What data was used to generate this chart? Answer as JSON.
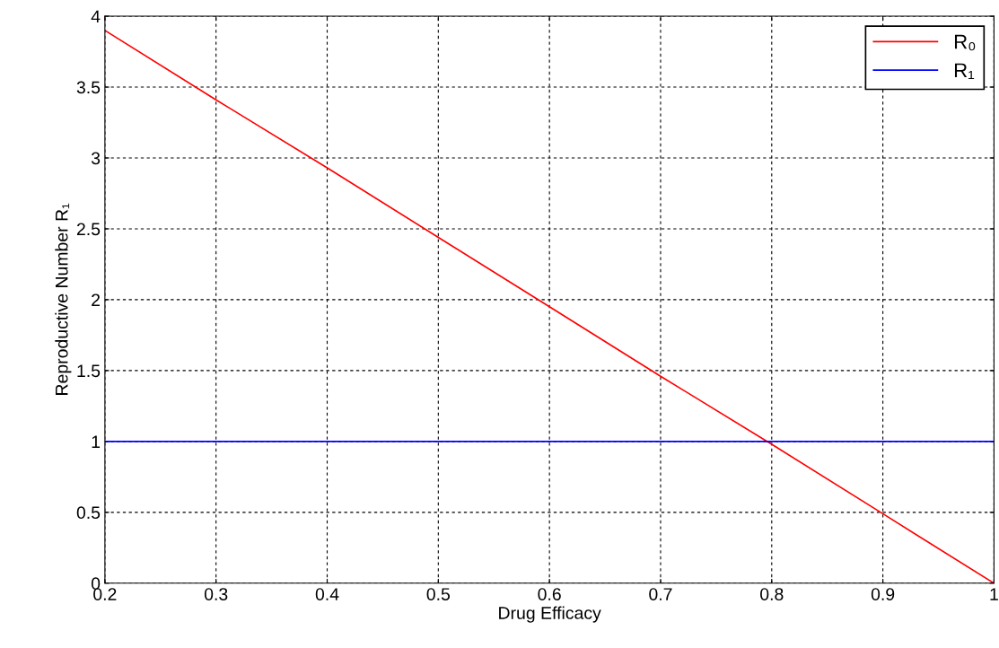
{
  "chart_data": {
    "type": "line",
    "xlabel": "Drug Efficacy",
    "ylabel": "Reproductive Number R₁",
    "xlim": [
      0.2,
      1
    ],
    "xticks": [
      0.2,
      0.3,
      0.4,
      0.5,
      0.6,
      0.7,
      0.8,
      0.9,
      1
    ],
    "ylim": [
      0,
      4
    ],
    "yticks": [
      0,
      0.5,
      1,
      1.5,
      2,
      2.5,
      3,
      3.5,
      4
    ],
    "grid": true,
    "legend": "top right",
    "line_style": "solid",
    "marker": "none",
    "series": [
      {
        "name": "R₀",
        "color": "#ff0000",
        "x": [
          0.2,
          0.3,
          0.4,
          0.5,
          0.6,
          0.7,
          0.8,
          0.9,
          1
        ],
        "values": [
          3.9,
          3.41,
          2.93,
          2.44,
          1.95,
          1.46,
          0.98,
          0.49,
          0
        ]
      },
      {
        "name": "R₁",
        "color": "#0000ff",
        "x": [
          0.2,
          1
        ],
        "values": [
          1,
          1
        ]
      }
    ]
  }
}
